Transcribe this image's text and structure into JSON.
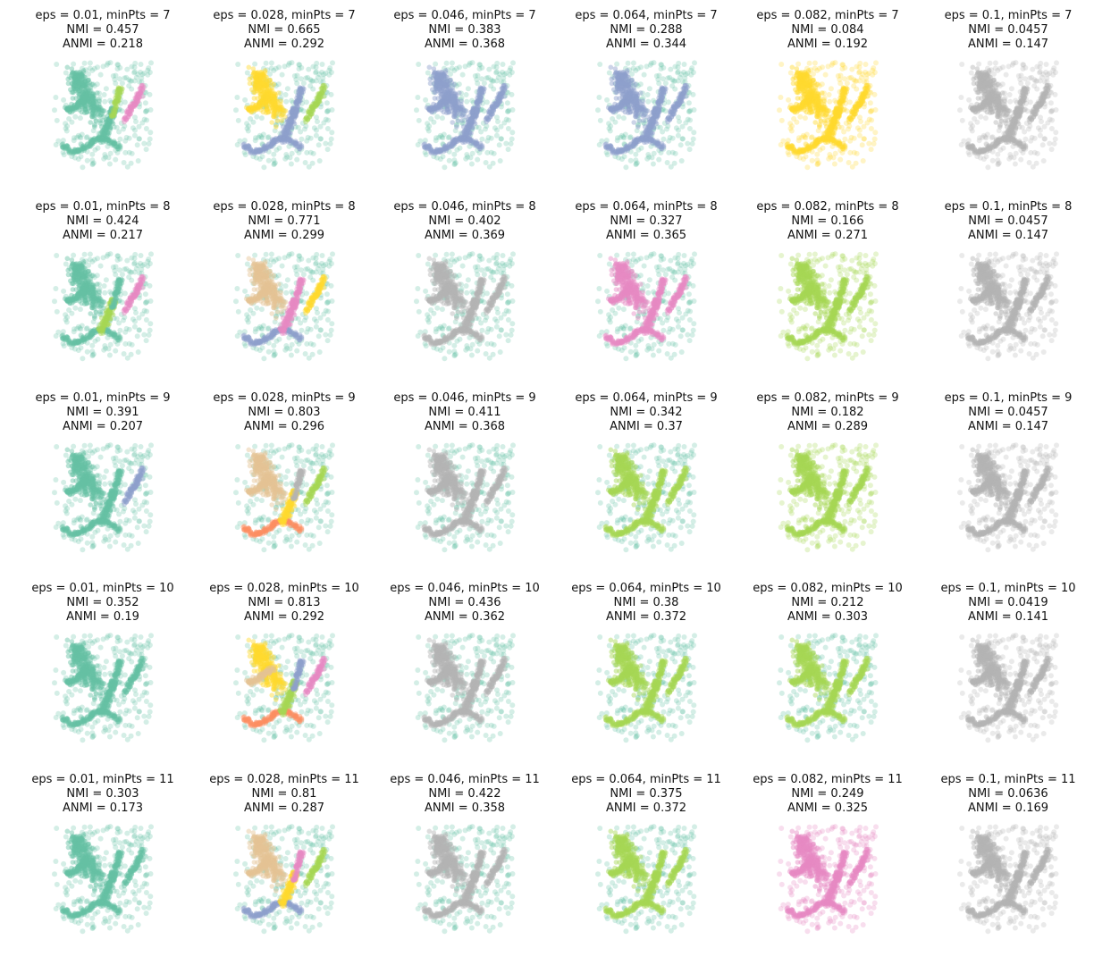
{
  "chart_data": {
    "type": "scatter",
    "layout": "grid of 5 rows x 6 columns of small scatter panels, no axes",
    "palette": {
      "teal": "#66c2a5",
      "orange": "#fc8d62",
      "blue": "#8da0cb",
      "pink": "#e78ac3",
      "green": "#a6d854",
      "yellow": "#ffd92f",
      "tan": "#e5c494",
      "gray": "#b3b3b3"
    },
    "panels": [
      {
        "title": "eps = 0.01, minPts = 7",
        "nmi": "NMI = 0.457",
        "anmi": "ANMI = 0.218",
        "noise": "teal",
        "body": "teal",
        "regions": {
          "a": "teal",
          "b": "teal",
          "c": "teal",
          "d": "pink",
          "e": "green"
        }
      },
      {
        "title": "eps = 0.028, minPts = 7",
        "nmi": "NMI = 0.665",
        "anmi": "ANMI = 0.292",
        "noise": "teal",
        "body": "yellow",
        "regions": {
          "a": "yellow",
          "b": "blue",
          "c": "blue",
          "d": "green",
          "e": "blue"
        }
      },
      {
        "title": "eps = 0.046, minPts = 7",
        "nmi": "NMI = 0.383",
        "anmi": "ANMI = 0.368",
        "noise": "teal",
        "body": "blue",
        "regions": {
          "a": "blue",
          "b": "blue",
          "c": "blue",
          "d": "blue",
          "e": "blue"
        }
      },
      {
        "title": "eps = 0.064, minPts = 7",
        "nmi": "NMI = 0.288",
        "anmi": "ANMI = 0.344",
        "noise": "teal",
        "body": "blue",
        "regions": {
          "a": "blue",
          "b": "blue",
          "c": "blue",
          "d": "blue",
          "e": "blue"
        }
      },
      {
        "title": "eps = 0.082, minPts = 7",
        "nmi": "NMI = 0.084",
        "anmi": "ANMI = 0.192",
        "noise": "yellow",
        "body": "yellow",
        "regions": {
          "a": "yellow",
          "b": "yellow",
          "c": "yellow",
          "d": "yellow",
          "e": "yellow"
        }
      },
      {
        "title": "eps = 0.1, minPts = 7",
        "nmi": "NMI = 0.0457",
        "anmi": "ANMI = 0.147",
        "noise": "gray",
        "body": "gray",
        "regions": {
          "a": "gray",
          "b": "gray",
          "c": "gray",
          "d": "gray",
          "e": "gray"
        }
      },
      {
        "title": "eps = 0.01, minPts = 8",
        "nmi": "NMI = 0.424",
        "anmi": "ANMI = 0.217",
        "noise": "teal",
        "body": "teal",
        "regions": {
          "a": "teal",
          "b": "teal",
          "c": "green",
          "d": "pink",
          "e": "teal"
        }
      },
      {
        "title": "eps = 0.028, minPts = 8",
        "nmi": "NMI = 0.771",
        "anmi": "ANMI = 0.299",
        "noise": "teal",
        "body": "tan",
        "regions": {
          "a": "tan",
          "b": "blue",
          "c": "pink",
          "d": "yellow",
          "e": "pink"
        }
      },
      {
        "title": "eps = 0.046, minPts = 8",
        "nmi": "NMI = 0.402",
        "anmi": "ANMI = 0.369",
        "noise": "teal",
        "body": "gray",
        "regions": {
          "a": "gray",
          "b": "gray",
          "c": "gray",
          "d": "gray",
          "e": "gray"
        }
      },
      {
        "title": "eps = 0.064, minPts = 8",
        "nmi": "NMI = 0.327",
        "anmi": "ANMI = 0.365",
        "noise": "teal",
        "body": "pink",
        "regions": {
          "a": "pink",
          "b": "pink",
          "c": "pink",
          "d": "pink",
          "e": "pink"
        }
      },
      {
        "title": "eps = 0.082, minPts = 8",
        "nmi": "NMI = 0.166",
        "anmi": "ANMI = 0.271",
        "noise": "green",
        "body": "green",
        "regions": {
          "a": "green",
          "b": "green",
          "c": "green",
          "d": "green",
          "e": "green"
        }
      },
      {
        "title": "eps = 0.1, minPts = 8",
        "nmi": "NMI = 0.0457",
        "anmi": "ANMI = 0.147",
        "noise": "gray",
        "body": "gray",
        "regions": {
          "a": "gray",
          "b": "gray",
          "c": "gray",
          "d": "gray",
          "e": "gray"
        }
      },
      {
        "title": "eps = 0.01, minPts = 9",
        "nmi": "NMI = 0.391",
        "anmi": "ANMI = 0.207",
        "noise": "teal",
        "body": "teal",
        "regions": {
          "a": "teal",
          "b": "teal",
          "c": "teal",
          "d": "blue",
          "e": "teal"
        }
      },
      {
        "title": "eps = 0.028, minPts = 9",
        "nmi": "NMI = 0.803",
        "anmi": "ANMI = 0.296",
        "noise": "teal",
        "body": "tan",
        "regions": {
          "a": "tan",
          "b": "orange",
          "c": "yellow",
          "d": "green",
          "e": "gray"
        }
      },
      {
        "title": "eps = 0.046, minPts = 9",
        "nmi": "NMI = 0.411",
        "anmi": "ANMI = 0.368",
        "noise": "teal",
        "body": "gray",
        "regions": {
          "a": "gray",
          "b": "gray",
          "c": "gray",
          "d": "gray",
          "e": "gray"
        }
      },
      {
        "title": "eps = 0.064, minPts = 9",
        "nmi": "NMI = 0.342",
        "anmi": "ANMI = 0.37",
        "noise": "teal",
        "body": "green",
        "regions": {
          "a": "green",
          "b": "green",
          "c": "green",
          "d": "green",
          "e": "green"
        }
      },
      {
        "title": "eps = 0.082, minPts = 9",
        "nmi": "NMI = 0.182",
        "anmi": "ANMI = 0.289",
        "noise": "green",
        "body": "green",
        "regions": {
          "a": "green",
          "b": "green",
          "c": "green",
          "d": "green",
          "e": "green"
        }
      },
      {
        "title": "eps = 0.1, minPts = 9",
        "nmi": "NMI = 0.0457",
        "anmi": "ANMI = 0.147",
        "noise": "gray",
        "body": "gray",
        "regions": {
          "a": "gray",
          "b": "gray",
          "c": "gray",
          "d": "gray",
          "e": "gray"
        }
      },
      {
        "title": "eps = 0.01, minPts = 10",
        "nmi": "NMI = 0.352",
        "anmi": "ANMI = 0.19",
        "noise": "teal",
        "body": "teal",
        "regions": {
          "a": "teal",
          "b": "teal",
          "c": "teal",
          "d": "teal",
          "e": "teal"
        }
      },
      {
        "title": "eps = 0.028, minPts = 10",
        "nmi": "NMI = 0.813",
        "anmi": "ANMI = 0.292",
        "noise": "teal",
        "body": "yellow",
        "regions": {
          "a": "tan",
          "b": "orange",
          "c": "green",
          "d": "pink",
          "e": "blue"
        }
      },
      {
        "title": "eps = 0.046, minPts = 10",
        "nmi": "NMI = 0.436",
        "anmi": "ANMI = 0.362",
        "noise": "teal",
        "body": "gray",
        "regions": {
          "a": "gray",
          "b": "gray",
          "c": "gray",
          "d": "gray",
          "e": "gray"
        }
      },
      {
        "title": "eps = 0.064, minPts = 10",
        "nmi": "NMI = 0.38",
        "anmi": "ANMI = 0.372",
        "noise": "teal",
        "body": "green",
        "regions": {
          "a": "green",
          "b": "green",
          "c": "green",
          "d": "green",
          "e": "green"
        }
      },
      {
        "title": "eps = 0.082, minPts = 10",
        "nmi": "NMI = 0.212",
        "anmi": "ANMI = 0.303",
        "noise": "teal",
        "body": "green",
        "regions": {
          "a": "green",
          "b": "green",
          "c": "green",
          "d": "green",
          "e": "green"
        }
      },
      {
        "title": "eps = 0.1, minPts = 10",
        "nmi": "NMI = 0.0419",
        "anmi": "ANMI = 0.141",
        "noise": "gray",
        "body": "gray",
        "regions": {
          "a": "gray",
          "b": "gray",
          "c": "gray",
          "d": "gray",
          "e": "gray"
        }
      },
      {
        "title": "eps = 0.01, minPts = 11",
        "nmi": "NMI = 0.303",
        "anmi": "ANMI = 0.173",
        "noise": "teal",
        "body": "teal",
        "regions": {
          "a": "teal",
          "b": "teal",
          "c": "teal",
          "d": "teal",
          "e": "teal"
        }
      },
      {
        "title": "eps = 0.028, minPts = 11",
        "nmi": "NMI = 0.81",
        "anmi": "ANMI = 0.287",
        "noise": "teal",
        "body": "tan",
        "regions": {
          "a": "tan",
          "b": "blue",
          "c": "yellow",
          "d": "green",
          "e": "pink"
        }
      },
      {
        "title": "eps = 0.046, minPts = 11",
        "nmi": "NMI = 0.422",
        "anmi": "ANMI = 0.358",
        "noise": "teal",
        "body": "gray",
        "regions": {
          "a": "gray",
          "b": "gray",
          "c": "gray",
          "d": "gray",
          "e": "gray"
        }
      },
      {
        "title": "eps = 0.064, minPts = 11",
        "nmi": "NMI = 0.375",
        "anmi": "ANMI = 0.372",
        "noise": "teal",
        "body": "green",
        "regions": {
          "a": "green",
          "b": "green",
          "c": "green",
          "d": "green",
          "e": "green"
        }
      },
      {
        "title": "eps = 0.082, minPts = 11",
        "nmi": "NMI = 0.249",
        "anmi": "ANMI = 0.325",
        "noise": "pink",
        "body": "pink",
        "regions": {
          "a": "pink",
          "b": "pink",
          "c": "pink",
          "d": "pink",
          "e": "pink"
        }
      },
      {
        "title": "eps = 0.1, minPts = 11",
        "nmi": "NMI = 0.0636",
        "anmi": "ANMI = 0.169",
        "noise": "gray",
        "body": "gray",
        "regions": {
          "a": "gray",
          "b": "gray",
          "c": "gray",
          "d": "gray",
          "e": "gray"
        }
      }
    ]
  }
}
